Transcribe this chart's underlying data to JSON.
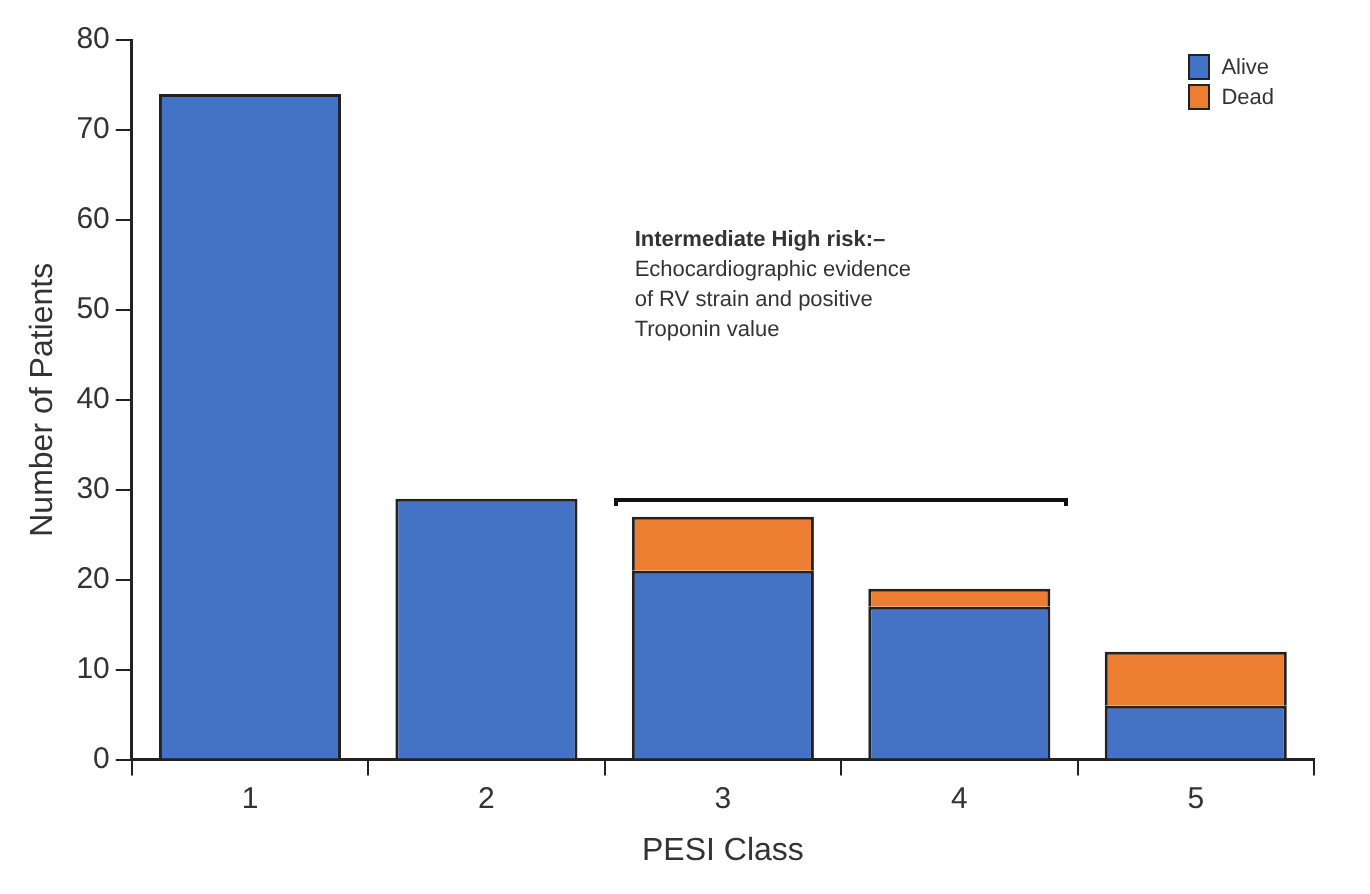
{
  "chart_data": {
    "type": "bar",
    "stacked": true,
    "xlabel": "PESI Class",
    "ylabel": "Number of Patients",
    "categories": [
      "1",
      "2",
      "3",
      "4",
      "5"
    ],
    "series": [
      {
        "name": "Alive",
        "color": "#4472c4",
        "values": [
          74,
          29,
          21,
          17,
          6
        ]
      },
      {
        "name": "Dead",
        "color": "#ed7d31",
        "values": [
          0,
          0,
          6,
          2,
          6
        ]
      }
    ],
    "ylim": [
      0,
      80
    ],
    "yticks": [
      0,
      10,
      20,
      30,
      40,
      50,
      60,
      70,
      80
    ],
    "grid": false,
    "legend": "top right",
    "annotations": [
      "Intermediate High risk:–\nEchocardiographic evidence\nof RV strain and positive\nTroponin value"
    ]
  }
}
